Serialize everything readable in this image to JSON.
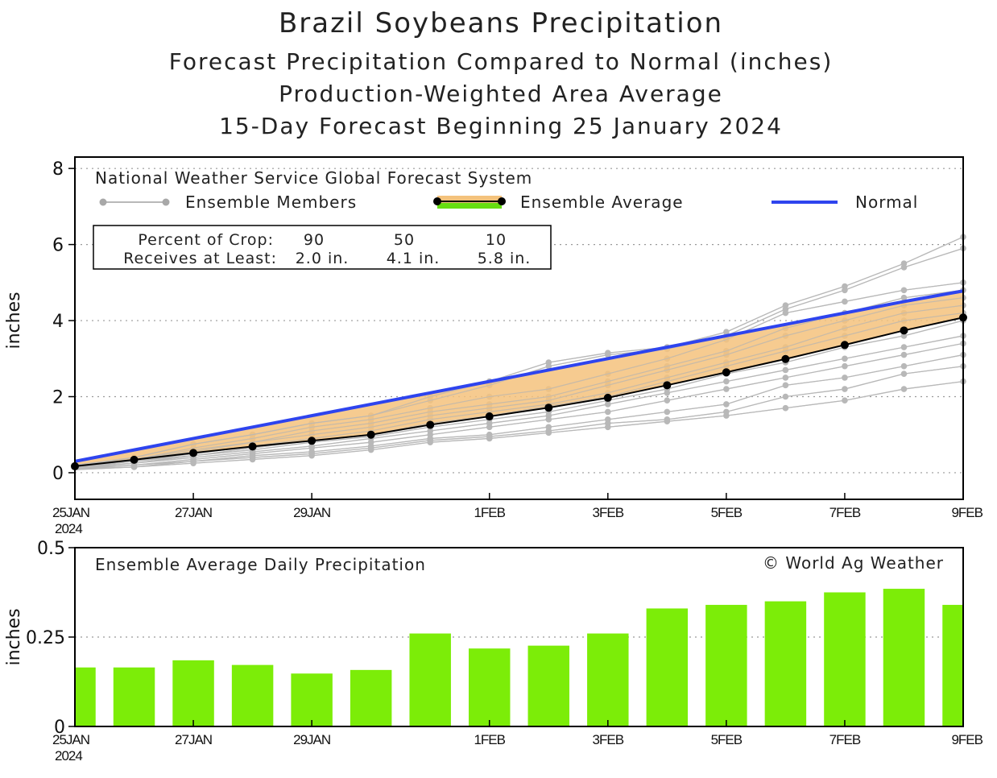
{
  "header": {
    "title": "Brazil Soybeans Precipitation",
    "subtitle1": "Forecast Precipitation Compared to Normal (inches)",
    "subtitle2": "Production-Weighted Area Average",
    "subtitle3": "15-Day Forecast Beginning 25 January 2024"
  },
  "colors": {
    "normal": "#2e44ee",
    "band": "#f4c27c",
    "member": "#b8b8b8",
    "average": "#000000",
    "bar": "#7ced08",
    "legend_green": "#66dd11"
  },
  "chart_data": [
    {
      "type": "line",
      "title": "National Weather Service Global Forecast System",
      "ylabel": "inches",
      "ylim": [
        -0.7,
        8.3
      ],
      "yticks": [
        0,
        2,
        4,
        6,
        8
      ],
      "yticklabels": [
        "0",
        "2",
        "4",
        "6",
        "8"
      ],
      "xlim": [
        0,
        15
      ],
      "xticks": [
        0,
        2,
        4,
        7,
        9,
        11,
        13,
        15
      ],
      "xticklabels": [
        "25JAN",
        "27JAN",
        "29JAN",
        "1FEB",
        "3FEB",
        "5FEB",
        "7FEB",
        "9FEB"
      ],
      "xyear": "2024",
      "legend": {
        "members": "Ensemble Members",
        "average": "Ensemble Average",
        "normal": "Normal"
      },
      "crop_box": {
        "row1_label": "Percent of Crop:",
        "row2_label": "Receives at Least:",
        "percents": [
          "90",
          "50",
          "10"
        ],
        "amounts": [
          "2.0 in.",
          "4.1 in.",
          "5.8 in."
        ]
      },
      "x": [
        0,
        1,
        2,
        3,
        4,
        5,
        6,
        7,
        8,
        9,
        10,
        11,
        12,
        13,
        14,
        15
      ],
      "series": [
        {
          "name": "Normal",
          "values": [
            0.3,
            0.6,
            0.9,
            1.2,
            1.5,
            1.8,
            2.1,
            2.4,
            2.7,
            3.0,
            3.3,
            3.6,
            3.9,
            4.2,
            4.5,
            4.78
          ]
        },
        {
          "name": "Ensemble Average",
          "values": [
            0.17,
            0.34,
            0.52,
            0.69,
            0.84,
            1.0,
            1.26,
            1.48,
            1.71,
            1.97,
            2.3,
            2.64,
            2.99,
            3.36,
            3.74,
            4.08
          ]
        }
      ],
      "members": [
        [
          0.2,
          0.4,
          0.75,
          1.0,
          1.3,
          1.5,
          2.0,
          2.4,
          2.9,
          3.15,
          3.3,
          3.7,
          4.4,
          4.9,
          5.5,
          6.2
        ],
        [
          0.2,
          0.4,
          0.75,
          1.0,
          1.3,
          1.5,
          1.9,
          2.3,
          2.8,
          3.1,
          3.25,
          3.6,
          4.3,
          4.8,
          5.4,
          5.9
        ],
        [
          0.2,
          0.35,
          0.65,
          0.9,
          1.2,
          1.4,
          1.7,
          2.0,
          2.2,
          2.6,
          3.0,
          3.5,
          4.2,
          4.5,
          4.8,
          5.0
        ],
        [
          0.18,
          0.35,
          0.6,
          0.8,
          1.1,
          1.3,
          1.6,
          1.8,
          2.0,
          2.4,
          2.8,
          3.2,
          3.8,
          4.2,
          4.6,
          4.8
        ],
        [
          0.2,
          0.35,
          0.55,
          0.8,
          1.0,
          1.2,
          1.5,
          1.7,
          1.9,
          2.3,
          2.7,
          3.1,
          3.6,
          4.0,
          4.4,
          4.6
        ],
        [
          0.15,
          0.3,
          0.5,
          0.7,
          0.9,
          1.1,
          1.4,
          1.6,
          1.8,
          2.1,
          2.5,
          2.9,
          3.3,
          3.8,
          4.2,
          4.4
        ],
        [
          0.15,
          0.3,
          0.45,
          0.65,
          0.85,
          1.0,
          1.3,
          1.5,
          1.75,
          2.0,
          2.4,
          2.8,
          3.2,
          3.6,
          4.0,
          4.2
        ],
        [
          0.15,
          0.25,
          0.45,
          0.6,
          0.8,
          0.95,
          1.2,
          1.4,
          1.6,
          1.9,
          2.2,
          2.6,
          2.9,
          3.3,
          3.6,
          4.0
        ],
        [
          0.12,
          0.25,
          0.4,
          0.55,
          0.7,
          0.9,
          1.1,
          1.3,
          1.5,
          1.8,
          2.1,
          2.4,
          2.7,
          3.0,
          3.3,
          3.6
        ],
        [
          0.12,
          0.2,
          0.35,
          0.5,
          0.65,
          0.8,
          1.0,
          1.2,
          1.4,
          1.6,
          1.9,
          2.2,
          2.5,
          2.8,
          3.1,
          3.4
        ],
        [
          0.1,
          0.2,
          0.3,
          0.45,
          0.55,
          0.7,
          0.9,
          1.0,
          1.2,
          1.4,
          1.6,
          1.8,
          2.3,
          2.5,
          2.8,
          3.1
        ],
        [
          0.1,
          0.15,
          0.3,
          0.4,
          0.5,
          0.65,
          0.85,
          0.95,
          1.1,
          1.3,
          1.4,
          1.6,
          2.0,
          2.2,
          2.6,
          2.8
        ],
        [
          0.08,
          0.15,
          0.25,
          0.35,
          0.45,
          0.6,
          0.8,
          0.9,
          1.05,
          1.2,
          1.35,
          1.5,
          1.7,
          1.9,
          2.2,
          2.4
        ]
      ]
    },
    {
      "type": "bar",
      "title": "Ensemble Average Daily Precipitation",
      "credit": "© World Ag Weather",
      "ylabel": "inches",
      "ylim": [
        0,
        0.5
      ],
      "yticks": [
        0,
        0.25,
        0.5
      ],
      "yticklabels": [
        "0",
        "0.25",
        "0.5"
      ],
      "x": [
        0,
        1,
        2,
        3,
        4,
        5,
        6,
        7,
        8,
        9,
        10,
        11,
        12,
        13,
        14,
        15
      ],
      "values": [
        0.165,
        0.165,
        0.185,
        0.172,
        0.148,
        0.158,
        0.26,
        0.218,
        0.226,
        0.26,
        0.33,
        0.34,
        0.35,
        0.375,
        0.385,
        0.34
      ]
    }
  ]
}
